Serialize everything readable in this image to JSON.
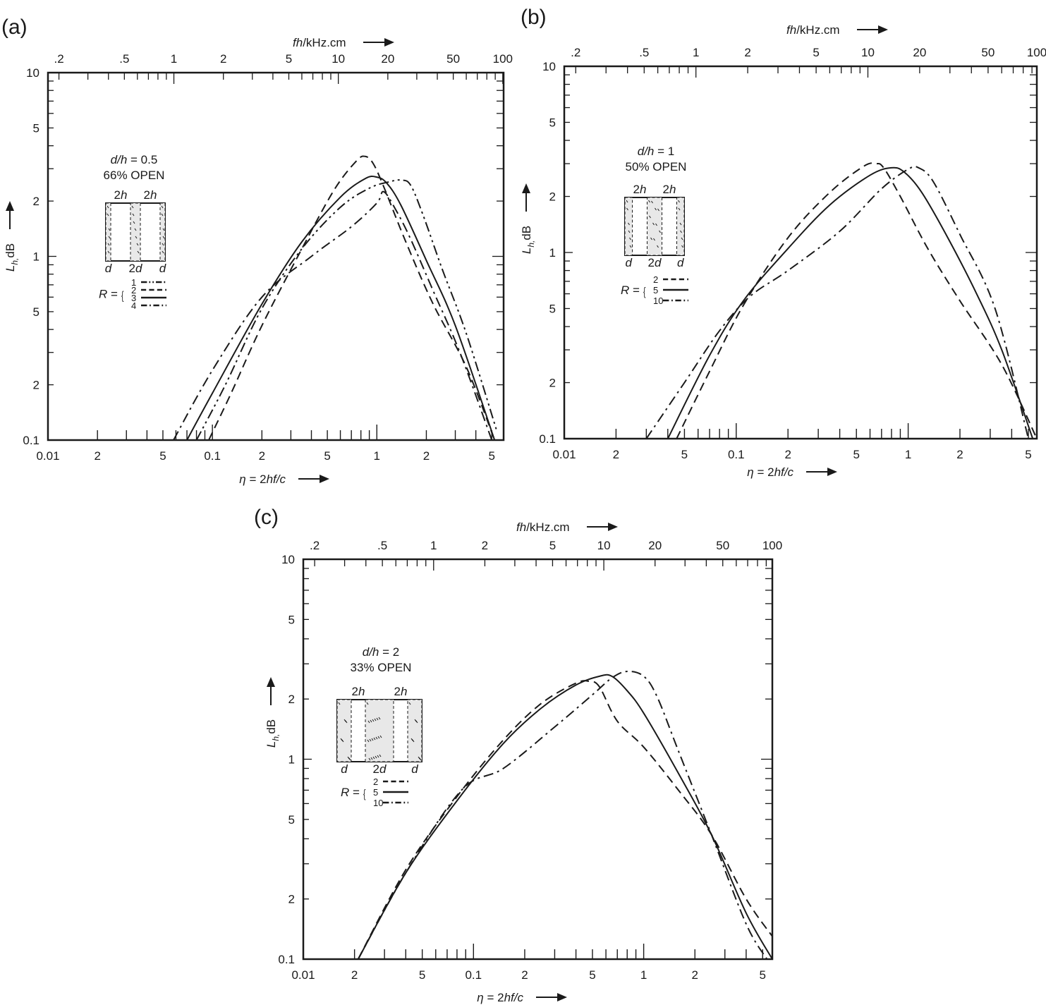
{
  "chart_data": [
    {
      "panel": "(a)",
      "type": "line",
      "title": "d/h = 0.5, 66% OPEN",
      "xlabel": "η = 2hf/c",
      "ylabel": "L_h, dB",
      "x2label": "fh/kHz.cm",
      "xscale": "log",
      "yscale": "log",
      "xlim": [
        0.01,
        5.9
      ],
      "ylim": [
        0.1,
        10
      ],
      "x_ticks": [
        "0.01",
        "2",
        "5",
        "0.1",
        "2",
        "5",
        "1",
        "2",
        "5"
      ],
      "x_tick_values": [
        0.01,
        0.02,
        0.05,
        0.1,
        0.2,
        0.5,
        1,
        2,
        5
      ],
      "x2_ticks": [
        ".2",
        ".5",
        "1",
        "2",
        "5",
        "10",
        "20",
        "50",
        "100"
      ],
      "y_ticks": [
        "0.1",
        "2",
        "5",
        "1",
        "2",
        "5",
        "10"
      ],
      "y_tick_values": [
        0.1,
        0.2,
        0.5,
        1,
        2,
        5,
        10
      ],
      "annotation": {
        "ratio": "d/h = 0.5",
        "open": "66% OPEN",
        "top_labels": [
          "2h",
          "2h"
        ],
        "bottom_labels": [
          "d",
          "2d",
          "d"
        ]
      },
      "legend_prefix": "R =",
      "series": [
        {
          "name": "1",
          "style": "dash-dot-dot",
          "x": [
            0.08,
            0.12,
            0.2,
            0.35,
            0.6,
            0.9,
            1.2,
            1.4,
            1.6,
            1.9,
            2.5,
            3.5,
            5.4
          ],
          "y": [
            0.1,
            0.2,
            0.52,
            1.1,
            1.85,
            2.35,
            2.55,
            2.6,
            2.45,
            1.7,
            0.85,
            0.38,
            0.11
          ]
        },
        {
          "name": "2",
          "style": "dashed",
          "x": [
            0.095,
            0.13,
            0.2,
            0.35,
            0.55,
            0.75,
            0.85,
            0.95,
            1.1,
            1.5,
            2.2,
            3.5,
            5.2
          ],
          "y": [
            0.1,
            0.18,
            0.42,
            1.1,
            2.3,
            3.3,
            3.5,
            3.2,
            2.4,
            1.2,
            0.55,
            0.25,
            0.1
          ]
        },
        {
          "name": "3",
          "style": "solid",
          "x": [
            0.07,
            0.1,
            0.2,
            0.35,
            0.6,
            0.85,
            1.0,
            1.15,
            1.4,
            2.0,
            3.0,
            5.2
          ],
          "y": [
            0.1,
            0.18,
            0.55,
            1.2,
            2.1,
            2.65,
            2.7,
            2.5,
            1.9,
            0.95,
            0.42,
            0.1
          ]
        },
        {
          "name": "4",
          "style": "dash-dot",
          "x": [
            0.058,
            0.1,
            0.2,
            0.4,
            0.7,
            1.0,
            1.1,
            1.3,
            1.6,
            2.2,
            3.2,
            5.0
          ],
          "y": [
            0.1,
            0.24,
            0.6,
            1.0,
            1.45,
            1.95,
            2.25,
            1.8,
            1.25,
            0.65,
            0.3,
            0.1
          ]
        }
      ]
    },
    {
      "panel": "(b)",
      "type": "line",
      "title": "d/h = 1, 50% OPEN",
      "xlabel": "η = 2hf/c",
      "ylabel": "L_h, dB",
      "x2label": "fh/kHz.cm",
      "xscale": "log",
      "yscale": "log",
      "xlim": [
        0.01,
        5.6
      ],
      "ylim": [
        0.1,
        10
      ],
      "x_ticks": [
        "0.01",
        "2",
        "5",
        "0.1",
        "2",
        "5",
        "1",
        "2",
        "5"
      ],
      "x_tick_values": [
        0.01,
        0.02,
        0.05,
        0.1,
        0.2,
        0.5,
        1,
        2,
        5
      ],
      "x2_ticks": [
        ".2",
        ".5",
        "1",
        "2",
        "5",
        "10",
        "20",
        "50",
        "100"
      ],
      "y_ticks": [
        "0.1",
        "2",
        "5",
        "1",
        "2",
        "5",
        "10"
      ],
      "y_tick_values": [
        0.1,
        0.2,
        0.5,
        1,
        2,
        5,
        10
      ],
      "annotation": {
        "ratio": "d/h = 1",
        "open": "50% OPEN",
        "top_labels": [
          "2h",
          "2h"
        ],
        "bottom_labels": [
          "d",
          "2d",
          "d"
        ]
      },
      "legend_prefix": "R =",
      "series": [
        {
          "name": "2",
          "style": "dashed",
          "x": [
            0.045,
            0.07,
            0.11,
            0.2,
            0.35,
            0.55,
            0.65,
            0.72,
            0.9,
            1.3,
            2.0,
            3.5,
            5.6
          ],
          "y": [
            0.1,
            0.23,
            0.52,
            1.2,
            2.1,
            2.9,
            3.0,
            2.85,
            2.0,
            1.05,
            0.55,
            0.25,
            0.1
          ]
        },
        {
          "name": "5",
          "style": "solid",
          "x": [
            0.04,
            0.07,
            0.11,
            0.2,
            0.35,
            0.6,
            0.8,
            0.95,
            1.2,
            1.7,
            2.5,
            3.5,
            5.3
          ],
          "y": [
            0.1,
            0.28,
            0.55,
            1.05,
            1.8,
            2.6,
            2.85,
            2.7,
            2.1,
            1.2,
            0.6,
            0.3,
            0.1
          ]
        },
        {
          "name": "10",
          "style": "dash-dot",
          "x": [
            0.03,
            0.05,
            0.08,
            0.12,
            0.2,
            0.4,
            0.7,
            1.0,
            1.15,
            1.4,
            2.0,
            3.2,
            5.0
          ],
          "y": [
            0.1,
            0.2,
            0.38,
            0.58,
            0.8,
            1.3,
            2.2,
            2.8,
            2.85,
            2.4,
            1.25,
            0.5,
            0.1
          ]
        }
      ]
    },
    {
      "panel": "(c)",
      "type": "line",
      "title": "d/h = 2, 33% OPEN",
      "xlabel": "η = 2hf/c",
      "ylabel": "L_h, dB",
      "x2label": "fh/kHz.cm",
      "xscale": "log",
      "yscale": "log",
      "xlim": [
        0.01,
        5.7
      ],
      "ylim": [
        0.1,
        10
      ],
      "x_ticks": [
        "0.01",
        "2",
        "5",
        "0.1",
        "2",
        "5",
        "1",
        "2",
        "5"
      ],
      "x_tick_values": [
        0.01,
        0.02,
        0.05,
        0.1,
        0.2,
        0.5,
        1,
        2,
        5
      ],
      "x2_ticks": [
        ".2",
        ".5",
        "1",
        "2",
        "5",
        "10",
        "20",
        "50",
        "100"
      ],
      "y_ticks": [
        "0.1",
        "2",
        "5",
        "1",
        "2",
        "5",
        "10"
      ],
      "y_tick_values": [
        0.1,
        0.2,
        0.5,
        1,
        2,
        5,
        10
      ],
      "annotation": {
        "ratio": "d/h = 2",
        "open": "33% OPEN",
        "top_labels": [
          "2h",
          "2h"
        ],
        "bottom_labels": [
          "d",
          "2d",
          "d"
        ]
      },
      "legend_prefix": "R =",
      "series": [
        {
          "name": "2",
          "style": "dashed",
          "x": [
            0.021,
            0.04,
            0.08,
            0.15,
            0.25,
            0.4,
            0.48,
            0.55,
            0.7,
            1.0,
            1.6,
            2.5,
            4.0,
            5.7
          ],
          "y": [
            0.1,
            0.28,
            0.65,
            1.25,
            1.9,
            2.4,
            2.45,
            2.3,
            1.55,
            1.15,
            0.7,
            0.42,
            0.2,
            0.13
          ]
        },
        {
          "name": "5",
          "style": "solid",
          "x": [
            0.021,
            0.04,
            0.08,
            0.15,
            0.25,
            0.4,
            0.55,
            0.65,
            0.8,
            1.0,
            1.6,
            2.5,
            4.0,
            5.7
          ],
          "y": [
            0.1,
            0.27,
            0.62,
            1.2,
            1.8,
            2.35,
            2.6,
            2.6,
            2.2,
            1.7,
            0.85,
            0.42,
            0.17,
            0.1
          ]
        },
        {
          "name": "10",
          "style": "dash-dot",
          "x": [
            0.021,
            0.04,
            0.085,
            0.15,
            0.3,
            0.5,
            0.65,
            0.8,
            1.0,
            1.2,
            1.6,
            2.5,
            4.0,
            5.3
          ],
          "y": [
            0.1,
            0.27,
            0.7,
            0.9,
            1.45,
            2.1,
            2.55,
            2.75,
            2.6,
            2.05,
            1.1,
            0.42,
            0.15,
            0.1
          ]
        }
      ]
    }
  ],
  "panels": [
    {
      "label": "(a)",
      "x2_title": "fh/kHz.cm",
      "x_title": "η = 2hf/c",
      "y_title": "L",
      "y_title_sub": "h,",
      "y_title_unit": "dB"
    },
    {
      "label": "(b)",
      "x2_title": "fh/kHz.cm",
      "x_title": "η = 2hf/c",
      "y_title": "L",
      "y_title_sub": "h,",
      "y_title_unit": "dB"
    },
    {
      "label": "(c)",
      "x2_title": "fh/kHz.cm",
      "x_title": "η = 2hf/c",
      "y_title": "L",
      "y_title_sub": "h,",
      "y_title_unit": "dB"
    }
  ],
  "colors": {
    "ink": "#1a1a1a",
    "background": "#ffffff"
  }
}
